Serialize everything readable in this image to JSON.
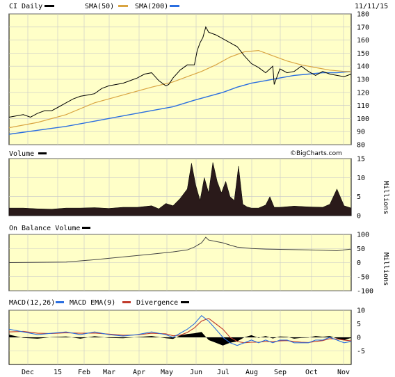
{
  "header": {
    "symbol_label": "CI Daily",
    "date": "11/11/15"
  },
  "watermark": "©BigCharts.com",
  "colors": {
    "price": "#000000",
    "sma50": "#d9a441",
    "sma200": "#2a6ee0",
    "macd": "#2a6ee0",
    "macd_ema": "#c0392b",
    "divergence": "#000000",
    "panel_bg": "#ffffc8",
    "grid": "#c8c8c8"
  },
  "chart_data": [
    {
      "type": "line",
      "panel": "price",
      "legend": [
        "CI Daily",
        "SMA(50)",
        "SMA(200)"
      ],
      "ylim": [
        80,
        180
      ],
      "yticks": [
        "80",
        "90",
        "100",
        "110",
        "120",
        "130",
        "140",
        "150",
        "160",
        "170",
        "180"
      ],
      "xticks": [
        "Dec",
        "15",
        "Feb",
        "Mar",
        "Apr",
        "May",
        "Jun",
        "Jul",
        "Aug",
        "Sep",
        "Oct",
        "Nov"
      ],
      "x_range": [
        0,
        240
      ],
      "series": [
        {
          "name": "CI Daily",
          "x": [
            0,
            5,
            10,
            15,
            20,
            25,
            30,
            35,
            40,
            45,
            50,
            55,
            60,
            65,
            70,
            75,
            80,
            85,
            90,
            95,
            100,
            105,
            110,
            112,
            115,
            120,
            125,
            130,
            132,
            134,
            136,
            138,
            140,
            145,
            150,
            155,
            160,
            165,
            170,
            175,
            180,
            185,
            186,
            188,
            190,
            195,
            200,
            205,
            210,
            215,
            220,
            225,
            230,
            235,
            240
          ],
          "y": [
            101,
            102,
            103,
            101,
            104,
            106,
            106,
            109,
            112,
            115,
            117,
            118,
            119,
            123,
            125,
            126,
            127,
            129,
            131,
            134,
            135,
            129,
            125,
            126,
            131,
            137,
            141,
            141,
            152,
            158,
            162,
            170,
            166,
            164,
            161,
            158,
            155,
            148,
            142,
            139,
            135,
            140,
            126,
            132,
            138,
            135,
            136,
            140,
            136,
            133,
            136,
            134,
            133,
            132,
            134
          ]
        },
        {
          "name": "SMA(50)",
          "x": [
            0,
            20,
            40,
            60,
            80,
            100,
            115,
            125,
            135,
            145,
            155,
            165,
            175,
            185,
            195,
            205,
            215,
            225,
            235,
            240
          ],
          "y": [
            93,
            97,
            103,
            112,
            118,
            124,
            128,
            132,
            136,
            141,
            147,
            151,
            152,
            148,
            144,
            141,
            139,
            137,
            136,
            136
          ]
        },
        {
          "name": "SMA(200)",
          "x": [
            0,
            20,
            40,
            60,
            80,
            100,
            115,
            130,
            140,
            150,
            160,
            170,
            180,
            190,
            200,
            210,
            220,
            230,
            240
          ],
          "y": [
            88,
            91,
            94,
            98,
            102,
            106,
            109,
            114,
            117,
            120,
            124,
            127,
            129,
            131,
            133,
            134,
            135,
            135,
            136
          ]
        }
      ]
    },
    {
      "type": "bar",
      "panel": "volume",
      "legend": [
        "Volume"
      ],
      "ylabel": "Millions",
      "ylim": [
        0,
        15
      ],
      "yticks": [
        "0",
        "5",
        "10",
        "15"
      ],
      "x": [
        0,
        10,
        20,
        30,
        40,
        50,
        60,
        70,
        80,
        90,
        100,
        105,
        110,
        115,
        120,
        125,
        128,
        131,
        134,
        137,
        140,
        143,
        146,
        149,
        152,
        155,
        158,
        161,
        164,
        167,
        170,
        175,
        180,
        183,
        186,
        190,
        200,
        210,
        220,
        225,
        230,
        235,
        240
      ],
      "values": [
        2,
        2,
        1.8,
        1.7,
        2,
        2,
        2.1,
        1.9,
        2.2,
        2.2,
        2.6,
        1.8,
        3.2,
        2.6,
        4.5,
        7,
        13.8,
        8,
        4,
        10,
        6,
        14,
        9,
        6,
        9,
        5,
        4,
        13,
        3,
        2.3,
        2,
        2,
        2.8,
        5,
        2.2,
        2.2,
        2.5,
        2.3,
        2.2,
        3,
        7,
        2.6,
        2
      ]
    },
    {
      "type": "line",
      "panel": "obv",
      "legend": [
        "On Balance Volume"
      ],
      "ylabel": "Millions",
      "ylim": [
        -100,
        100
      ],
      "yticks": [
        "-100",
        "-50",
        "0",
        "50",
        "100"
      ],
      "series": [
        {
          "name": "On Balance Volume",
          "x": [
            0,
            20,
            40,
            60,
            80,
            100,
            115,
            125,
            130,
            135,
            138,
            140,
            145,
            150,
            155,
            160,
            170,
            180,
            190,
            200,
            210,
            220,
            230,
            235,
            240
          ],
          "y": [
            0,
            1,
            2,
            10,
            20,
            30,
            38,
            45,
            55,
            70,
            90,
            80,
            75,
            70,
            62,
            55,
            50,
            48,
            47,
            46,
            45,
            44,
            42,
            45,
            48
          ]
        }
      ]
    },
    {
      "type": "line",
      "panel": "macd",
      "legend": [
        "MACD(12,26)",
        "MACD EMA(9)",
        "Divergence"
      ],
      "ylim": [
        -10,
        10
      ],
      "yticks": [
        "-5",
        "0",
        "5",
        "10"
      ],
      "series": [
        {
          "name": "MACD(12,26)",
          "x": [
            0,
            10,
            20,
            30,
            40,
            50,
            60,
            70,
            80,
            90,
            100,
            110,
            115,
            120,
            125,
            130,
            135,
            140,
            145,
            150,
            155,
            160,
            165,
            170,
            175,
            180,
            185,
            190,
            195,
            200,
            205,
            210,
            215,
            220,
            225,
            230,
            235,
            240
          ],
          "y": [
            3,
            2,
            1,
            1.5,
            2,
            1,
            2,
            1,
            0.5,
            1,
            2,
            1,
            0,
            1.5,
            3,
            5,
            8,
            6,
            3,
            0,
            -2,
            -3,
            -2,
            -1,
            -2,
            -1,
            -2,
            -1,
            -1,
            -2,
            -2,
            -2,
            -1,
            -1,
            0,
            -1,
            -2,
            -1.5
          ]
        },
        {
          "name": "MACD EMA(9)",
          "x": [
            0,
            10,
            20,
            30,
            40,
            50,
            60,
            70,
            80,
            90,
            100,
            110,
            115,
            120,
            125,
            130,
            135,
            140,
            145,
            150,
            155,
            160,
            165,
            170,
            175,
            180,
            185,
            190,
            195,
            200,
            205,
            210,
            215,
            220,
            225,
            230,
            235,
            240
          ],
          "y": [
            2,
            2.2,
            1.5,
            1.4,
            1.7,
            1.5,
            1.6,
            1.2,
            0.8,
            0.9,
            1.5,
            1.3,
            0.6,
            0.8,
            1.8,
            3.5,
            6,
            7,
            5,
            3,
            0,
            -1.5,
            -2,
            -1.8,
            -1.8,
            -1.5,
            -1.6,
            -1.3,
            -1.2,
            -1.5,
            -1.8,
            -1.9,
            -1.5,
            -1.2,
            -0.5,
            -0.6,
            -1,
            -1.3
          ]
        },
        {
          "name": "Divergence",
          "x": [
            0,
            10,
            20,
            30,
            40,
            50,
            60,
            70,
            80,
            90,
            100,
            110,
            115,
            120,
            125,
            130,
            135,
            140,
            145,
            150,
            155,
            160,
            165,
            170,
            175,
            180,
            185,
            190,
            195,
            200,
            205,
            210,
            215,
            220,
            225,
            230,
            235,
            240
          ],
          "y": [
            1,
            -0.2,
            -0.5,
            0.1,
            0.3,
            -0.5,
            0.4,
            -0.2,
            -0.3,
            0.1,
            0.5,
            -0.3,
            -0.6,
            0.7,
            1.2,
            1.5,
            2,
            -1,
            -2,
            -3,
            -2,
            -1.5,
            0,
            0.8,
            -0.2,
            0.5,
            -0.4,
            0.3,
            0.2,
            -0.5,
            -0.2,
            -0.1,
            0.5,
            0.2,
            0.5,
            -0.4,
            -1,
            -0.2
          ]
        }
      ]
    }
  ]
}
